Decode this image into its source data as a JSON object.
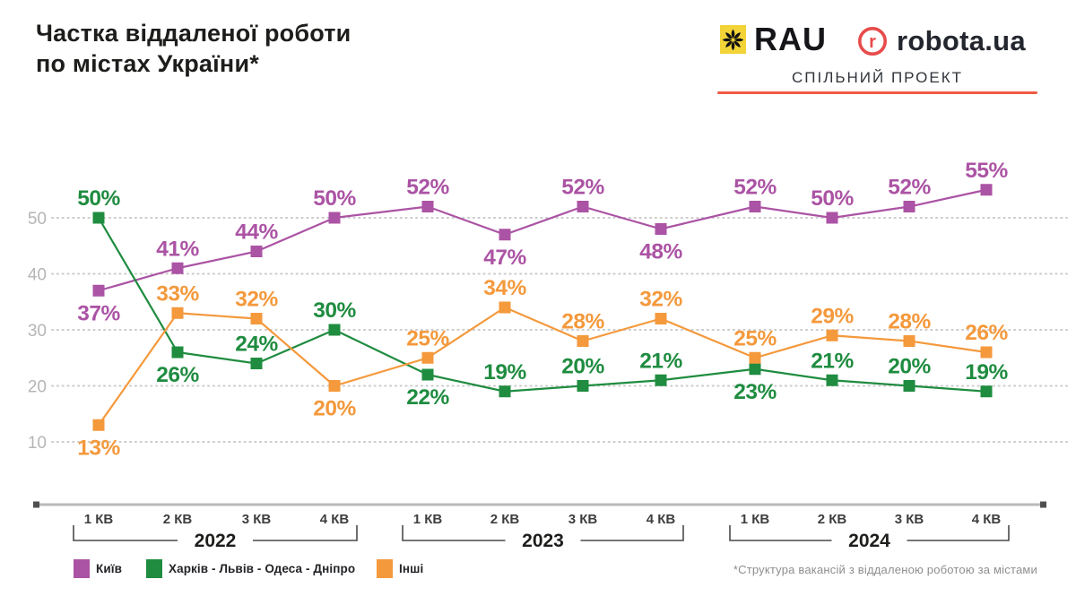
{
  "header": {
    "title_line1": "Частка віддаленої роботи",
    "title_line2": "по містах України*",
    "rau_text": "RAU",
    "robota_r": "r",
    "robota_text": "robota.ua",
    "subtitle": "СПІЛЬНИЙ ПРОЕКТ"
  },
  "colors": {
    "kyiv": "#ab53a4",
    "kharkiv_group": "#1f8c40",
    "other": "#f4993c",
    "rau_yellow": "#f2d438",
    "rau_black": "#121212",
    "robota_red": "#e84b4b",
    "underline_red": "#ee5a45",
    "grid": "#cbcbcb",
    "axis_line": "#bababa",
    "axis_cap": "#4f4f4f",
    "y_tick_text": "#b5b5b5",
    "quarter_text": "#3e3e3e",
    "year_text": "#1d1d1b",
    "bracket": "#4a4a4a"
  },
  "chart_data": {
    "type": "line",
    "title": "Частка віддаленої роботи по містах України*",
    "years": [
      "2022",
      "2023",
      "2024"
    ],
    "quarter_labels": [
      "1 КВ",
      "2 КВ",
      "3 КВ",
      "4 КВ"
    ],
    "categories": [
      "1 КВ 2022",
      "2 КВ 2022",
      "3 КВ 2022",
      "4 КВ 2022",
      "1 КВ 2023",
      "2 КВ 2023",
      "3 КВ 2023",
      "4 КВ 2023",
      "1 КВ 2024",
      "2 КВ 2024",
      "3 КВ 2024",
      "4 КВ 2024"
    ],
    "unit": "%",
    "ylim": [
      0,
      60
    ],
    "grid_values": [
      10,
      20,
      30,
      40,
      50
    ],
    "grid_style": "dotted",
    "legend_position": "bottom",
    "series": [
      {
        "name": "Київ",
        "color_key": "kyiv",
        "values": [
          37,
          41,
          44,
          50,
          52,
          47,
          52,
          48,
          52,
          50,
          52,
          55
        ],
        "label_pos": [
          "below",
          "above",
          "above",
          "above",
          "above",
          "below",
          "above",
          "below",
          "above",
          "above",
          "above",
          "above"
        ]
      },
      {
        "name": "Харків - Львів - Одеса - Дніпро",
        "color_key": "kharkiv_group",
        "values": [
          50,
          26,
          24,
          30,
          22,
          19,
          20,
          21,
          23,
          21,
          20,
          19
        ],
        "label_pos": [
          "above",
          "below",
          "above",
          "above",
          "below",
          "above",
          "above",
          "above",
          "below",
          "above",
          "above",
          "above"
        ]
      },
      {
        "name": "Інші",
        "color_key": "other",
        "values": [
          13,
          33,
          32,
          20,
          25,
          34,
          28,
          32,
          25,
          29,
          28,
          26
        ],
        "label_pos": [
          "below",
          "above",
          "above",
          "below",
          "above",
          "above",
          "above",
          "above",
          "above",
          "above",
          "above",
          "above"
        ]
      }
    ]
  },
  "legend": {
    "items": [
      {
        "label": "Київ",
        "color_key": "kyiv"
      },
      {
        "label": "Харків - Львів - Одеса - Дніпро",
        "color_key": "kharkiv_group"
      },
      {
        "label": "Інші",
        "color_key": "other"
      }
    ]
  },
  "footnote": "*Структура вакансій з віддаленою роботою за містами"
}
